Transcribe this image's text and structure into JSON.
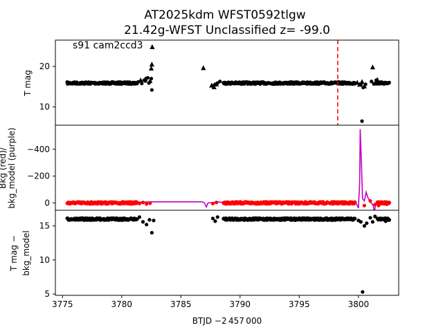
{
  "figure": {
    "title_line1": "AT2025kdm  WFST0592tlgw",
    "title_line2": "21.42g-WFST Unclassified z= -99.0",
    "xlabel": "BTJD −2 457 000",
    "x_ticks": [
      "3775",
      "3780",
      "3785",
      "3790",
      "3795",
      "3800"
    ],
    "xlim": [
      3774.4,
      3803.4
    ]
  },
  "chart_data": [
    {
      "type": "scatter",
      "panel": "top",
      "ylabel": "T mag",
      "annotation": "s91 cam2ccd3",
      "ylim": [
        26.5,
        5.5
      ],
      "inverted_y": true,
      "y_ticks": [
        "10",
        "20"
      ],
      "y_tick_values": [
        10,
        20
      ],
      "vline": {
        "x": 3798.25,
        "color": "#ff0000",
        "style": "dashed"
      },
      "series": [
        {
          "marker": "circle",
          "color": "#000000",
          "bands": [
            [
              3775.4,
              3781.3,
              15.9
            ],
            [
              3788.6,
              3799.7,
              15.9
            ],
            [
              3801.6,
              3802.6,
              15.9
            ]
          ]
        },
        {
          "marker": "circle",
          "color": "#000000",
          "points": [
            [
              3781.4,
              16.2
            ],
            [
              3781.7,
              15.8
            ],
            [
              3782.0,
              16.4
            ],
            [
              3782.3,
              15.9
            ],
            [
              3782.55,
              14.2
            ],
            [
              3782.5,
              17.0
            ],
            [
              3781.9,
              16.6
            ],
            [
              3782.2,
              17.2
            ],
            [
              3787.7,
              15.2
            ],
            [
              3787.9,
              15.6
            ],
            [
              3788.1,
              15.9
            ],
            [
              3788.3,
              16.3
            ],
            [
              3800.2,
              15.5
            ],
            [
              3800.4,
              14.8
            ],
            [
              3800.3,
              6.5
            ],
            [
              3800.6,
              15.6
            ],
            [
              3801.1,
              16.3
            ],
            [
              3801.3,
              15.7
            ],
            [
              3801.5,
              16.6
            ],
            [
              3802.5,
              15.9
            ]
          ]
        },
        {
          "marker": "triangle",
          "color": "#000000",
          "points": [
            [
              3781.6,
              16.6
            ],
            [
              3782.0,
              16.9
            ],
            [
              3782.4,
              16.4
            ],
            [
              3782.5,
              19.5
            ],
            [
              3782.55,
              20.5
            ],
            [
              3782.58,
              24.8
            ],
            [
              3786.9,
              19.6
            ],
            [
              3787.6,
              15.3
            ],
            [
              3787.8,
              14.9
            ],
            [
              3788.0,
              15.6
            ],
            [
              3799.9,
              16.0
            ],
            [
              3800.1,
              15.5
            ],
            [
              3800.3,
              16.2
            ],
            [
              3800.5,
              15.1
            ],
            [
              3801.2,
              19.8
            ],
            [
              3801.4,
              15.8
            ],
            [
              3801.6,
              16.7
            ]
          ]
        }
      ]
    },
    {
      "type": "line",
      "panel": "middle",
      "ylabel_line1": "Bkg (red)/",
      "ylabel_line2": "bkg_model (purple)",
      "ylim": [
        -580,
        55
      ],
      "y_ticks": [
        "0",
        "−200",
        "−400"
      ],
      "y_tick_values": [
        0,
        -200,
        -400
      ],
      "series": [
        {
          "color": "#bf00bf",
          "style": "line",
          "x": [
            3775.4,
            3781.0,
            3781.5,
            3782.6,
            3786.8,
            3787.0,
            3787.15,
            3787.3,
            3787.6,
            3788.2,
            3788.6,
            3795.0,
            3799.0,
            3799.8,
            3800.0,
            3800.1,
            3800.15,
            3800.25,
            3800.35,
            3800.5,
            3800.65,
            3800.8,
            3800.95,
            3801.1,
            3801.25,
            3801.35,
            3801.45,
            3801.6,
            3801.9,
            3802.2,
            3802.6
          ],
          "y": [
            0,
            0,
            -6,
            -8,
            -8,
            0,
            30,
            0,
            -2,
            -8,
            -2,
            -2,
            -1,
            2,
            40,
            -150,
            -550,
            -300,
            -30,
            -15,
            -80,
            -40,
            -15,
            3,
            20,
            70,
            10,
            5,
            0,
            5,
            0
          ]
        },
        {
          "color": "#ff0000",
          "style": "dots",
          "bands": [
            [
              3775.4,
              3781.3,
              0
            ],
            [
              3788.6,
              3799.7,
              0
            ],
            [
              3801.6,
              3802.6,
              0
            ]
          ],
          "points": [
            [
              3781.5,
              5
            ],
            [
              3781.8,
              -3
            ],
            [
              3782.1,
              8
            ],
            [
              3782.4,
              2
            ],
            [
              3787.7,
              5
            ],
            [
              3788.0,
              -3
            ],
            [
              3799.5,
              6
            ],
            [
              3800.5,
              20
            ],
            [
              3801.0,
              -15
            ],
            [
              3801.4,
              12
            ],
            [
              3801.7,
              20
            ],
            [
              3802.0,
              -5
            ],
            [
              3802.4,
              10
            ],
            [
              3802.6,
              0
            ]
          ]
        }
      ]
    },
    {
      "type": "scatter",
      "panel": "bottom",
      "ylabel_line1": "T mag −",
      "ylabel_line2": "bkg_model",
      "ylim": [
        17.3,
        4.8
      ],
      "inverted_y": true,
      "y_ticks": [
        "5",
        "10",
        "15"
      ],
      "y_tick_values": [
        5,
        10,
        15
      ],
      "series": [
        {
          "marker": "circle",
          "color": "#000000",
          "bands": [
            [
              3775.4,
              3781.3,
              16.0
            ],
            [
              3788.6,
              3799.7,
              16.0
            ],
            [
              3801.6,
              3802.6,
              16.0
            ]
          ],
          "points": [
            [
              3781.5,
              16.3
            ],
            [
              3781.8,
              15.6
            ],
            [
              3782.1,
              15.2
            ],
            [
              3782.35,
              15.9
            ],
            [
              3782.55,
              14.0
            ],
            [
              3782.7,
              15.8
            ],
            [
              3787.7,
              16.1
            ],
            [
              3787.9,
              15.7
            ],
            [
              3788.1,
              16.3
            ],
            [
              3800.0,
              15.8
            ],
            [
              3800.2,
              15.6
            ],
            [
              3800.35,
              5.3
            ],
            [
              3800.5,
              15.0
            ],
            [
              3800.7,
              15.4
            ],
            [
              3801.0,
              16.2
            ],
            [
              3801.2,
              15.6
            ],
            [
              3801.4,
              16.4
            ],
            [
              3802.3,
              15.7
            ],
            [
              3802.6,
              15.9
            ]
          ]
        }
      ]
    }
  ]
}
